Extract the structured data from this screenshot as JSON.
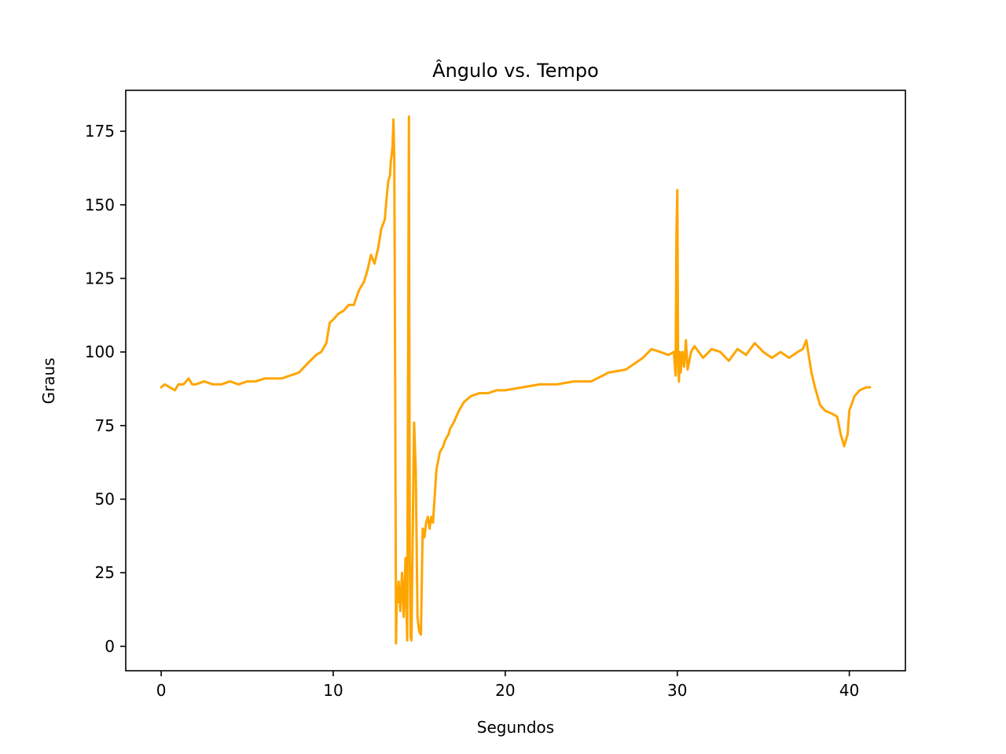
{
  "chart_data": {
    "type": "line",
    "title": "Ângulo vs. Tempo",
    "xlabel": "Segundos",
    "ylabel": "Graus",
    "xlim": [
      -2.06,
      43.26
    ],
    "ylim": [
      -8.3,
      188.9
    ],
    "xticks": [
      0,
      10,
      20,
      30,
      40
    ],
    "yticks": [
      0,
      25,
      50,
      75,
      100,
      125,
      150,
      175
    ],
    "grid": false,
    "series": [
      {
        "color": "#FFA500",
        "x": [
          0.0,
          0.2,
          0.5,
          0.8,
          1.0,
          1.3,
          1.6,
          1.8,
          2.0,
          2.5,
          3.0,
          3.5,
          4.0,
          4.5,
          5.0,
          5.5,
          6.0,
          6.5,
          7.0,
          7.5,
          8.0,
          8.5,
          9.0,
          9.3,
          9.6,
          9.8,
          10.0,
          10.3,
          10.6,
          10.9,
          11.2,
          11.5,
          11.8,
          12.0,
          12.2,
          12.4,
          12.6,
          12.8,
          13.0,
          13.1,
          13.2,
          13.3,
          13.35,
          13.4,
          13.45,
          13.5,
          13.55,
          13.6,
          13.65,
          13.7,
          13.75,
          13.8,
          13.9,
          14.0,
          14.1,
          14.2,
          14.3,
          14.4,
          14.45,
          14.5,
          14.55,
          14.6,
          14.7,
          14.8,
          14.9,
          15.0,
          15.1,
          15.2,
          15.3,
          15.4,
          15.5,
          15.6,
          15.7,
          15.8,
          16.0,
          16.2,
          16.4,
          16.5,
          16.6,
          16.7,
          16.8,
          17.0,
          17.3,
          17.6,
          18.0,
          18.5,
          19.0,
          19.5,
          20.0,
          21.0,
          22.0,
          23.0,
          24.0,
          25.0,
          26.0,
          27.0,
          28.0,
          28.5,
          29.0,
          29.5,
          29.8,
          29.9,
          29.95,
          30.0,
          30.05,
          30.1,
          30.15,
          30.2,
          30.3,
          30.4,
          30.5,
          30.6,
          30.8,
          31.0,
          31.5,
          32.0,
          32.5,
          33.0,
          33.5,
          34.0,
          34.5,
          35.0,
          35.5,
          36.0,
          36.5,
          37.0,
          37.3,
          37.5,
          37.8,
          38.0,
          38.3,
          38.6,
          39.0,
          39.3,
          39.5,
          39.7,
          39.9,
          40.0,
          40.3,
          40.6,
          41.0,
          41.2
        ],
        "y": [
          88,
          89,
          88,
          87,
          89,
          89,
          91,
          89,
          89,
          90,
          89,
          89,
          90,
          89,
          90,
          90,
          91,
          91,
          91,
          92,
          93,
          96,
          99,
          100,
          103,
          110,
          111,
          113,
          114,
          116,
          116,
          121,
          124,
          128,
          133,
          130,
          135,
          142,
          145,
          152,
          158,
          160,
          165,
          167,
          170,
          179,
          165,
          90,
          1,
          20,
          15,
          22,
          12,
          25,
          10,
          30,
          2,
          180,
          30,
          3,
          2,
          30,
          76,
          60,
          10,
          5,
          4,
          40,
          37,
          42,
          44,
          40,
          44,
          42,
          60,
          66,
          68,
          70,
          71,
          72,
          74,
          76,
          80,
          83,
          85,
          86,
          86,
          87,
          87,
          88,
          89,
          89,
          90,
          90,
          93,
          94,
          98,
          101,
          100,
          99,
          100,
          92,
          140,
          155,
          95,
          90,
          100,
          93,
          100,
          95,
          104,
          94,
          100,
          102,
          98,
          101,
          100,
          97,
          101,
          99,
          103,
          100,
          98,
          100,
          98,
          100,
          101,
          104,
          93,
          88,
          82,
          80,
          79,
          78,
          72,
          68,
          72,
          80,
          85,
          87,
          88,
          88
        ]
      }
    ]
  }
}
